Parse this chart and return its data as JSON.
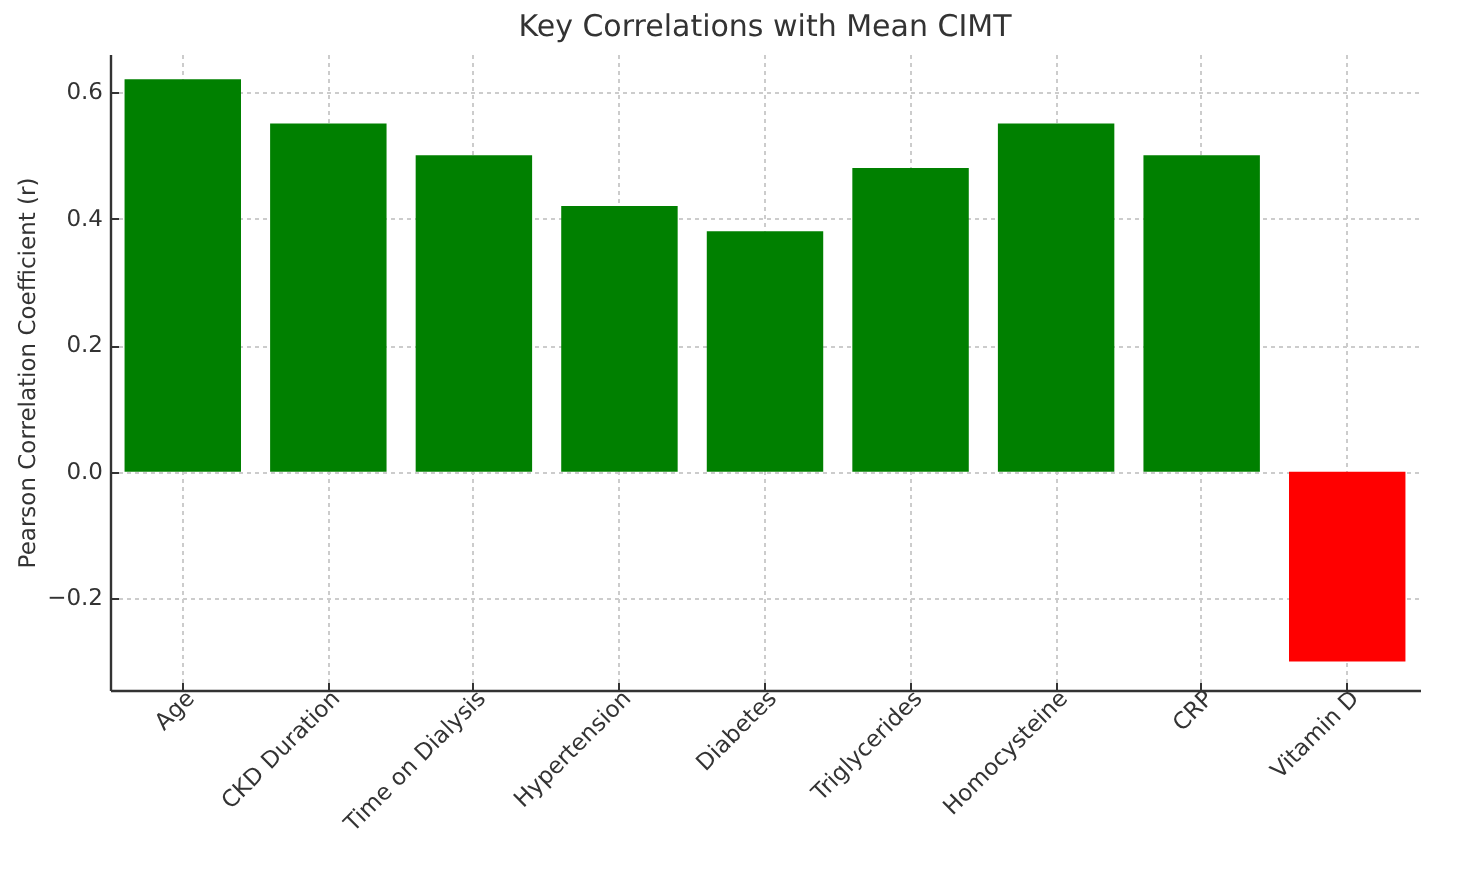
{
  "chart_data": {
    "type": "bar",
    "title": "Key Correlations with Mean CIMT",
    "ylabel": "Pearson Correlation Coefficient (r)",
    "categories": [
      "Age",
      "CKD Duration",
      "Time on Dialysis",
      "Hypertension",
      "Diabetes",
      "Triglycerides",
      "Homocysteine",
      "CRP",
      "Vitamin D"
    ],
    "values": [
      0.62,
      0.55,
      0.5,
      0.42,
      0.38,
      0.48,
      0.55,
      0.5,
      -0.3
    ],
    "colors": [
      "#008000",
      "#008000",
      "#008000",
      "#008000",
      "#008000",
      "#008000",
      "#008000",
      "#008000",
      "#ff0000"
    ],
    "ylim": [
      -0.345,
      0.66
    ],
    "yticks": [
      {
        "value": -0.2,
        "label": "−0.2"
      },
      {
        "value": 0,
        "label": "0.0"
      },
      {
        "value": 0.2,
        "label": "0.2"
      },
      {
        "value": 0.4,
        "label": "0.4"
      },
      {
        "value": 0.6,
        "label": "0.6"
      }
    ],
    "grid": true
  }
}
